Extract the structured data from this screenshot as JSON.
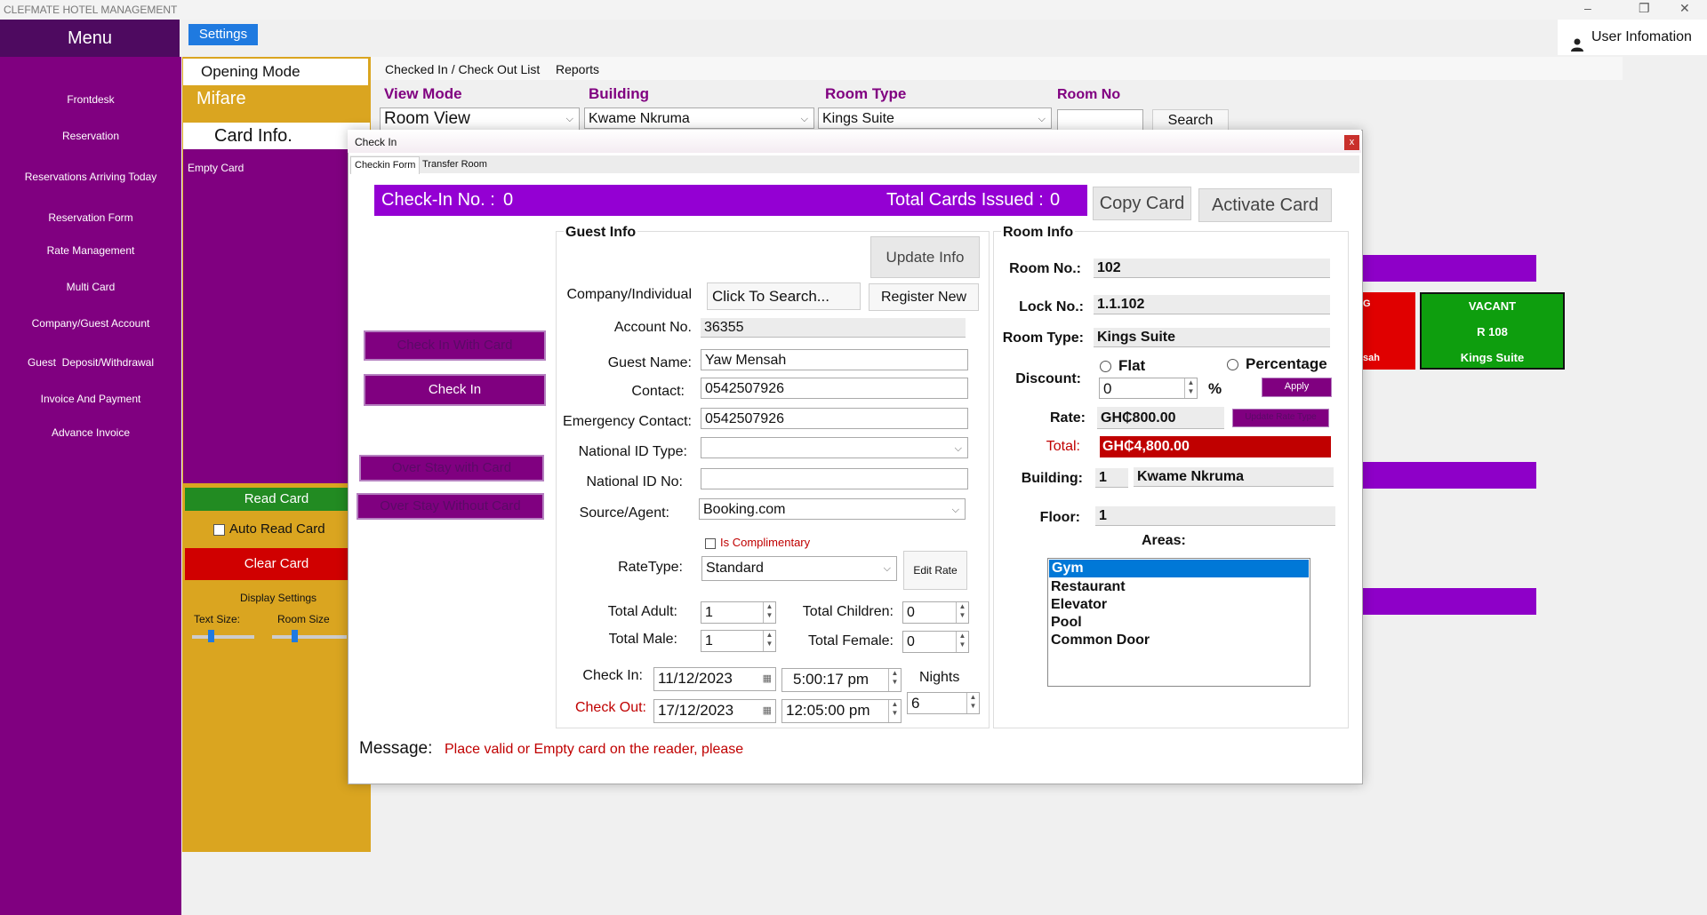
{
  "app_title": "CLEFMATE HOTEL MANAGEMENT",
  "window_controls": {
    "minimize": "–",
    "restore": "❐",
    "close": "✕"
  },
  "menu": {
    "title": "Menu",
    "items": [
      "Frontdesk",
      "Reservation",
      "Reservations Arriving Today",
      "Reservation Form",
      "Rate Management",
      "Multi Card",
      "Company/Guest Account",
      "Guest  Deposit/Withdrawal",
      "Invoice And Payment",
      "Advance Invoice"
    ]
  },
  "settings_label": "Settings",
  "user_info": {
    "icon": "user-icon",
    "label": "User Infomation"
  },
  "left_panel": {
    "opening_mode": "Opening Mode",
    "mifare": "Mifare",
    "card_info": "Card Info.",
    "empty_card": "Empty Card",
    "read_card": "Read Card",
    "auto_read_card": "Auto Read Card",
    "clear_card": "Clear Card",
    "display_settings": "Display Settings",
    "text_size": "Text Size:",
    "room_size": "Room Size"
  },
  "top_tabs": [
    "Checked In / Check Out List",
    "Reports"
  ],
  "filters": {
    "view_mode": {
      "label": "View Mode",
      "value": "Room View"
    },
    "building": {
      "label": "Building",
      "value": "Kwame Nkruma"
    },
    "room_type": {
      "label": "Room Type",
      "value": "Kings Suite"
    },
    "room_no": {
      "label": "Room No",
      "value": ""
    },
    "search": "Search"
  },
  "room_cards": {
    "red": {
      "line1": "G",
      "line3": "sah"
    },
    "green": {
      "status": "VACANT",
      "room": "R 108",
      "type": "Kings Suite"
    }
  },
  "dialog": {
    "title": "Check In",
    "close": "x",
    "tabs": [
      "Checkin Form",
      "Transfer Room"
    ],
    "checkin_no_label": "Check-In No. :",
    "checkin_no": "0",
    "total_cards_label": "Total Cards Issued :",
    "total_cards": "0",
    "copy_card": "Copy Card",
    "activate_card": "Activate Card",
    "buttons": {
      "check_in_with_card": "Check In With Card",
      "check_in": "Check In",
      "over_stay_with_card": "Over Stay with Card",
      "over_stay_without_card": "Over Stay Without Card"
    },
    "guest": {
      "title": "Guest Info",
      "update_info": "Update Info",
      "company_label": "Company/Individual",
      "click_to_search": "Click To Search...",
      "register_new": "Register New",
      "account_no_label": "Account No.",
      "account_no": "36355",
      "guest_name_label": "Guest Name:",
      "guest_name": "Yaw Mensah",
      "contact_label": "Contact:",
      "contact": "0542507926",
      "emergency_label": "Emergency Contact:",
      "emergency": "0542507926",
      "national_id_type_label": "National ID Type:",
      "national_id_type": "",
      "national_id_no_label": "National ID No:",
      "national_id_no": "",
      "source_label": "Source/Agent:",
      "source": "Booking.com",
      "complimentary": "Is Complimentary",
      "ratetype_label": "RateType:",
      "ratetype": "Standard",
      "edit_rate": "Edit Rate",
      "total_adult_label": "Total Adult:",
      "total_adult": "1",
      "total_children_label": "Total Children:",
      "total_children": "0",
      "total_male_label": "Total Male:",
      "total_male": "1",
      "total_female_label": "Total Female:",
      "total_female": "0",
      "check_in_label": "Check In:",
      "check_in_date": "11/12/2023",
      "check_in_time": "5:00:17 pm",
      "nights_label": "Nights",
      "check_out_label": "Check Out:",
      "check_out_date": "17/12/2023",
      "check_out_time": "12:05:00 pm",
      "nights": "6"
    },
    "room": {
      "title": "Room Info",
      "room_no_label": "Room No.:",
      "room_no": "102",
      "lock_no_label": "Lock No.:",
      "lock_no": "1.1.102",
      "room_type_label": "Room Type:",
      "room_type": "Kings Suite",
      "flat": "Flat",
      "percentage": "Percentage",
      "discount_label": "Discount:",
      "discount": "0",
      "percent_sign": "%",
      "apply": "Apply",
      "rate_label": "Rate:",
      "rate": "GH₵800.00",
      "update_rate_type": "Update Rate Type",
      "total_label": "Total:",
      "total": "GH₵4,800.00",
      "building_label": "Building:",
      "building_no": "1",
      "building_name": "Kwame Nkruma",
      "floor_label": "Floor:",
      "floor": "1",
      "areas_label": "Areas:",
      "areas": [
        "Gym",
        "Restaurant",
        "Elevator",
        "Pool",
        "Common Door"
      ]
    },
    "message_label": "Message:",
    "message": "Place valid or Empty card on the reader, please"
  },
  "colors": {
    "purple": "#800080",
    "gold": "#daa520",
    "red": "#d00000",
    "green": "#228b22",
    "bright_purple": "#9400d3"
  }
}
